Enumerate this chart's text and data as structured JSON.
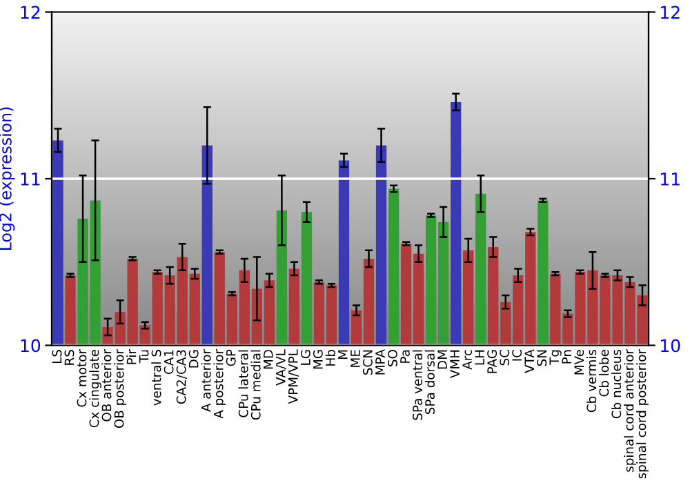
{
  "chart_data": {
    "type": "bar",
    "ylabel": "Log2 (expression)",
    "categories": [
      "LS",
      "RS",
      "Cx motor",
      "Cx cingulate",
      "OB anterior",
      "OB posterior",
      "Pir",
      "Tu",
      "ventral S",
      "CA1",
      "CA2/CA3",
      "DG",
      "A anterior",
      "A posterior",
      "GP",
      "CPu lateral",
      "CPu medial",
      "MD",
      "VA/VL",
      "VPM/VPL",
      "LG",
      "MG",
      "Hb",
      "M",
      "ME",
      "SCN",
      "MPA",
      "SO",
      "Pa",
      "SPa ventral",
      "SPa dorsal",
      "DM",
      "VMH",
      "Arc",
      "LH",
      "PAG",
      "SC",
      "IC",
      "VTA",
      "SN",
      "Tg",
      "Pn",
      "MVe",
      "Cb vermis",
      "Cb lobe",
      "Cb nucleus",
      "spinal cord anterior",
      "spinal cord posterior"
    ],
    "values": [
      11.23,
      10.42,
      10.76,
      10.87,
      10.11,
      10.2,
      10.52,
      10.12,
      10.44,
      10.42,
      10.53,
      10.43,
      11.2,
      10.56,
      10.31,
      10.45,
      10.34,
      10.39,
      10.81,
      10.46,
      10.8,
      10.38,
      10.36,
      11.11,
      10.21,
      10.52,
      11.2,
      10.94,
      10.61,
      10.55,
      10.78,
      10.74,
      11.46,
      10.57,
      10.91,
      10.59,
      10.26,
      10.42,
      10.68,
      10.87,
      10.43,
      10.19,
      10.44,
      10.45,
      10.42,
      10.42,
      10.38,
      10.3
    ],
    "errors": [
      0.07,
      0.01,
      0.26,
      0.36,
      0.05,
      0.07,
      0.01,
      0.02,
      0.01,
      0.05,
      0.08,
      0.03,
      0.23,
      0.01,
      0.01,
      0.07,
      0.19,
      0.04,
      0.21,
      0.04,
      0.06,
      0.01,
      0.01,
      0.04,
      0.03,
      0.05,
      0.1,
      0.02,
      0.01,
      0.05,
      0.01,
      0.09,
      0.05,
      0.07,
      0.11,
      0.06,
      0.04,
      0.04,
      0.02,
      0.01,
      0.01,
      0.02,
      0.01,
      0.11,
      0.01,
      0.03,
      0.03,
      0.06
    ],
    "colors": [
      "#3a3ab8",
      "#b33a3a",
      "#33a033",
      "#33a033",
      "#b33a3a",
      "#b33a3a",
      "#b33a3a",
      "#b33a3a",
      "#b33a3a",
      "#b33a3a",
      "#b33a3a",
      "#b33a3a",
      "#3a3ab8",
      "#b33a3a",
      "#b33a3a",
      "#b33a3a",
      "#b33a3a",
      "#b33a3a",
      "#33a033",
      "#b33a3a",
      "#33a033",
      "#b33a3a",
      "#b33a3a",
      "#3a3ab8",
      "#b33a3a",
      "#b33a3a",
      "#3a3ab8",
      "#33a033",
      "#b33a3a",
      "#b33a3a",
      "#33a033",
      "#33a033",
      "#3a3ab8",
      "#b33a3a",
      "#33a033",
      "#b33a3a",
      "#b33a3a",
      "#b33a3a",
      "#b33a3a",
      "#33a033",
      "#b33a3a",
      "#b33a3a",
      "#b33a3a",
      "#b33a3a",
      "#b33a3a",
      "#b33a3a",
      "#b33a3a",
      "#b33a3a"
    ],
    "ylim": [
      10,
      12
    ],
    "yticks": [
      10,
      11,
      12
    ],
    "y2lim": [
      10,
      12
    ],
    "y2ticks": [
      10,
      11,
      12
    ],
    "grid": "y"
  }
}
